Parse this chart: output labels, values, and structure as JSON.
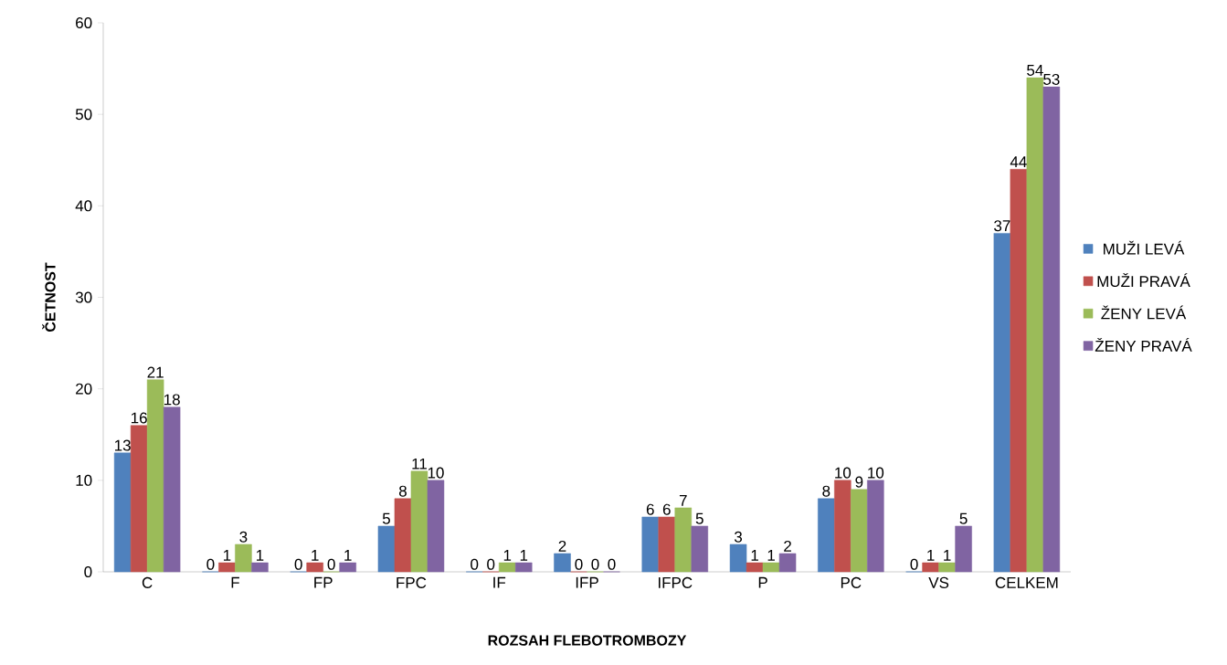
{
  "chart_data": {
    "type": "bar",
    "xlabel": "ROZSAH FLEBOTROMBOZY",
    "ylabel": "ČETNOST",
    "categories": [
      "C",
      "F",
      "FP",
      "FPC",
      "IF",
      "IFP",
      "IFPC",
      "P",
      "PC",
      "VS",
      "CELKEM"
    ],
    "series": [
      {
        "name": "MUŽI LEVÁ",
        "color": "#4f81bd",
        "values": [
          13,
          0,
          0,
          5,
          0,
          2,
          6,
          3,
          8,
          0,
          37
        ]
      },
      {
        "name": "MUŽI PRAVÁ",
        "color": "#c0504d",
        "values": [
          16,
          1,
          1,
          8,
          0,
          0,
          6,
          1,
          10,
          1,
          44
        ]
      },
      {
        "name": "ŽENY LEVÁ",
        "color": "#9bbb59",
        "values": [
          21,
          3,
          0,
          11,
          1,
          0,
          7,
          1,
          9,
          1,
          54
        ]
      },
      {
        "name": "ŽENY PRAVÁ",
        "color": "#8064a2",
        "values": [
          18,
          1,
          1,
          10,
          1,
          0,
          5,
          2,
          10,
          5,
          53
        ]
      }
    ],
    "ylim": [
      0,
      60
    ],
    "yticks": [
      0,
      10,
      20,
      30,
      40,
      50,
      60
    ],
    "data_labels": true,
    "legend": "right",
    "grid": false
  }
}
